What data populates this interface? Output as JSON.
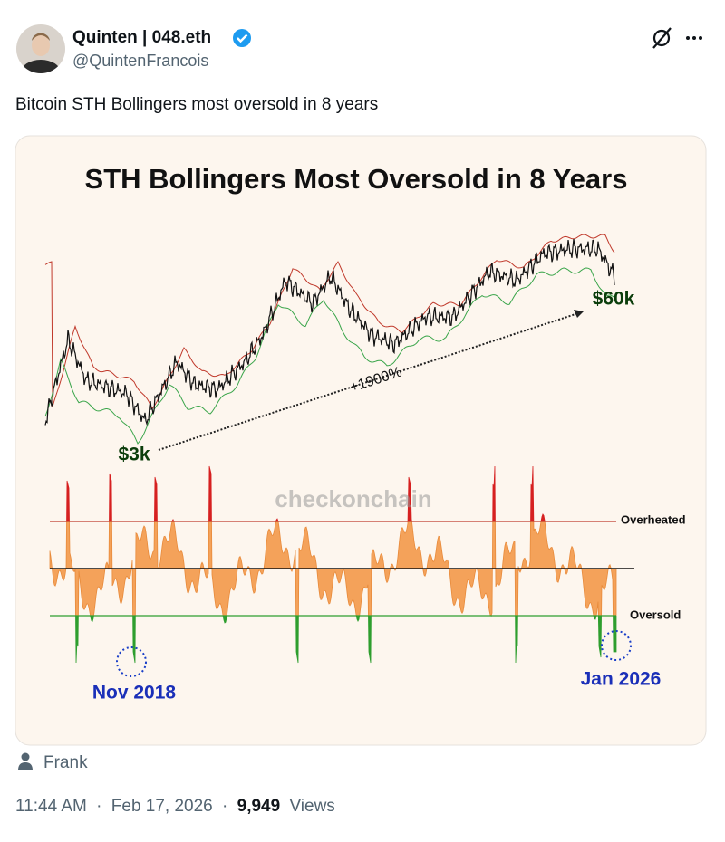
{
  "author": {
    "name": "Quinten | 048.eth",
    "handle": "@QuintenFrancois"
  },
  "post": {
    "text": "Bitcoin STH Bollingers most oversold in 8 years"
  },
  "image": {
    "title": "STH Bollingers Most Oversold in 8 Years",
    "low_label": "$3k",
    "high_label": "$60k",
    "gain_label": "+1900%",
    "watermark": "checkonchain",
    "overheated_label": "Overheated",
    "oversold_label": "Oversold",
    "left_marker": "Nov  2018",
    "right_marker": "Jan 2026"
  },
  "attribution": {
    "name": "Frank"
  },
  "meta": {
    "time": "11:44 AM",
    "separator": "·",
    "date": "Feb 17, 2026",
    "views_count": "9,949",
    "views_label": "Views"
  }
}
